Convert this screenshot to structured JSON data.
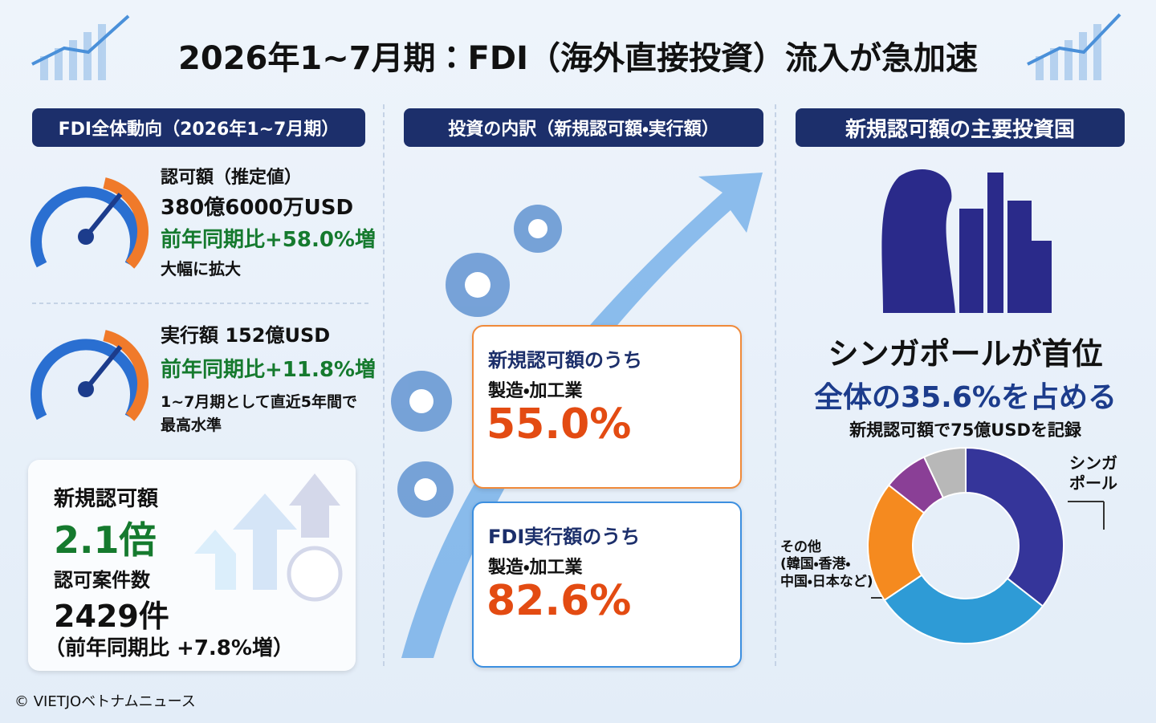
{
  "header": {
    "title": "2026年1~7月期：FDI（海外直接投資）流入が急加速"
  },
  "left": {
    "heading": "FDI全体動向（2026年1~7月期）",
    "approval": {
      "label": "認可額（推定値）",
      "amount": "380億6000万USD",
      "growth": "前年同期比+58.0%増",
      "note": "大幅に拡大"
    },
    "disbursement": {
      "label": "実行額 152億USD",
      "growth": "前年同期比+11.8%増",
      "note": [
        "1~7月期として直近5年間で",
        "最高水準"
      ]
    },
    "card": {
      "new_label": "新規認可額",
      "new_value": "2.1倍",
      "count_label": "認可案件数",
      "count_value": "2429件",
      "count_growth": "（前年同期比 +7.8%増）"
    }
  },
  "middle": {
    "heading": "投資の内訳（新規認可額・実行額）",
    "cards": [
      {
        "title": "新規認可額のうち",
        "sector": "製造・加工業",
        "value": 55.0,
        "value_label": "55.0%"
      },
      {
        "title": "FDI実行額のうち",
        "sector": "製造・加工業",
        "value": 82.6,
        "value_label": "82.6%"
      }
    ]
  },
  "right": {
    "heading": "新規認可額の主要投資国",
    "headline": "シンガポールが首位",
    "share": "全体の35.6%を占める",
    "note": "新規認可額で75億USDを記録"
  },
  "chart_data": {
    "type": "pie",
    "donut": true,
    "categories": [
      "シンガ\nポール",
      null,
      "その他\n(韓国・香港・\n中国・日本など)",
      null,
      null
    ],
    "values": [
      35.6,
      30,
      20,
      7.4,
      7
    ],
    "colors": [
      "#35359a",
      "#2e9bd6",
      "#f58a1f",
      "#8a3f96",
      "#b8b8b8"
    ]
  },
  "footer": {
    "credit": "© VIETJOベトナムニュース"
  }
}
